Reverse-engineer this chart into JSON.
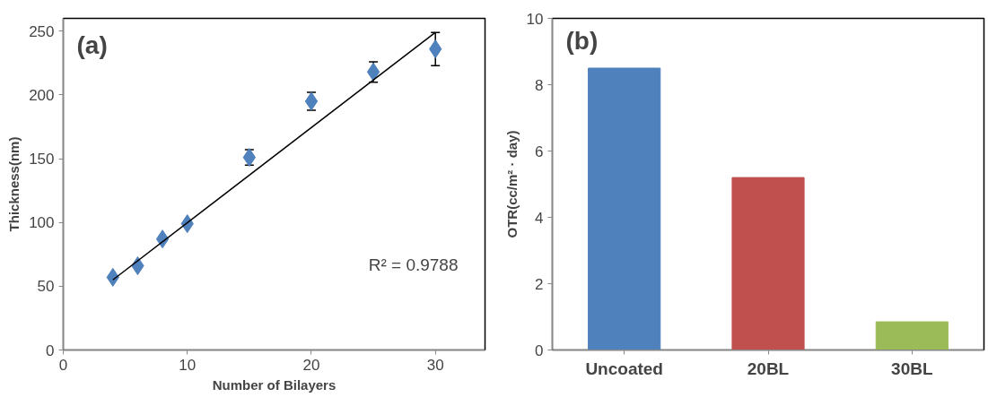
{
  "chart_data": [
    {
      "type": "scatter",
      "xlabel": "Number of Bilayers",
      "ylabel": "Thickness(nm)",
      "xlim": [
        0,
        34
      ],
      "ylim": [
        0,
        260
      ],
      "xticks": [
        0,
        10,
        20,
        30
      ],
      "yticks": [
        0,
        50,
        100,
        150,
        200,
        250
      ],
      "grid": false,
      "series": [
        {
          "color": "#4f81bd",
          "marker": "diamond",
          "x": [
            4,
            6,
            8,
            10,
            15,
            20,
            25,
            30
          ],
          "values": [
            57,
            66,
            87,
            99,
            151,
            195,
            218,
            236
          ],
          "errors": [
            null,
            null,
            null,
            null,
            6,
            7,
            8,
            13
          ]
        },
        {
          "type": "line",
          "color": "#000000",
          "x": [
            4,
            30
          ],
          "values": [
            55,
            249
          ]
        }
      ],
      "annotations": [
        "(a)",
        "R² = 0.9788"
      ]
    },
    {
      "type": "bar",
      "ylabel": "OTR(cc/m² · day)",
      "categories": [
        "Uncoated",
        "20BL",
        "30BL"
      ],
      "values": [
        8.5,
        5.2,
        0.85
      ],
      "colors": [
        "#4f81bd",
        "#c0504d",
        "#9bbb59"
      ],
      "ylim": [
        0,
        10
      ],
      "yticks": [
        0,
        2,
        4,
        6,
        8,
        10
      ],
      "grid": false,
      "annotations": [
        "(b)"
      ]
    }
  ]
}
